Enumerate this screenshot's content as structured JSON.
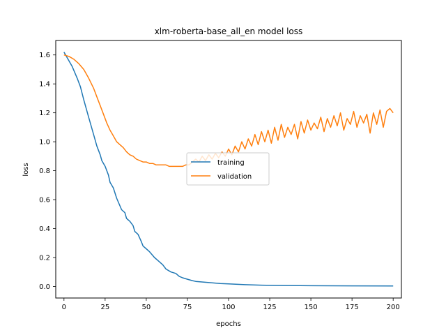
{
  "chart_data": {
    "type": "line",
    "title": "xlm-roberta-base_all_en model loss",
    "xlabel": "epochs",
    "ylabel": "loss",
    "xlim": [
      -5,
      205
    ],
    "ylim": [
      -0.08,
      1.7
    ],
    "xticks": [
      0,
      25,
      50,
      75,
      100,
      125,
      150,
      175,
      200
    ],
    "xtick_labels": [
      "0",
      "25",
      "50",
      "75",
      "100",
      "125",
      "150",
      "175",
      "200"
    ],
    "yticks": [
      0.0,
      0.2,
      0.4,
      0.6,
      0.8,
      1.0,
      1.2,
      1.4,
      1.6
    ],
    "ytick_labels": [
      "0.0",
      "0.2",
      "0.4",
      "0.6",
      "0.8",
      "1.0",
      "1.2",
      "1.4",
      "1.6"
    ],
    "grid": false,
    "legend_position": "center",
    "series": [
      {
        "name": "training",
        "color": "#1f77b4",
        "x": [
          0,
          2,
          5,
          8,
          10,
          12,
          15,
          18,
          20,
          22,
          23,
          25,
          27,
          28,
          30,
          32,
          35,
          37,
          38,
          40,
          42,
          43,
          45,
          47,
          48,
          50,
          52,
          55,
          57,
          60,
          62,
          65,
          68,
          70,
          72,
          75,
          78,
          80,
          85,
          90,
          95,
          100,
          110,
          120,
          130,
          150,
          175,
          200
        ],
        "y": [
          1.62,
          1.58,
          1.52,
          1.44,
          1.38,
          1.29,
          1.17,
          1.05,
          0.97,
          0.91,
          0.87,
          0.83,
          0.77,
          0.72,
          0.68,
          0.61,
          0.53,
          0.51,
          0.47,
          0.45,
          0.42,
          0.38,
          0.36,
          0.31,
          0.28,
          0.26,
          0.24,
          0.2,
          0.18,
          0.15,
          0.12,
          0.1,
          0.09,
          0.07,
          0.06,
          0.05,
          0.04,
          0.035,
          0.03,
          0.025,
          0.02,
          0.018,
          0.012,
          0.009,
          0.007,
          0.005,
          0.004,
          0.003
        ]
      },
      {
        "name": "validation",
        "color": "#ff7f0e",
        "x": [
          0,
          3,
          6,
          9,
          12,
          15,
          18,
          20,
          22,
          24,
          26,
          28,
          30,
          32,
          34,
          36,
          38,
          40,
          42,
          44,
          46,
          48,
          50,
          52,
          54,
          56,
          58,
          60,
          62,
          64,
          66,
          68,
          70,
          72,
          74,
          76,
          78,
          80,
          82,
          84,
          86,
          88,
          90,
          92,
          94,
          96,
          98,
          100,
          102,
          104,
          106,
          108,
          110,
          112,
          114,
          116,
          118,
          120,
          122,
          124,
          126,
          128,
          130,
          132,
          134,
          136,
          138,
          140,
          142,
          144,
          146,
          148,
          150,
          152,
          154,
          156,
          158,
          160,
          162,
          164,
          166,
          168,
          170,
          172,
          174,
          176,
          178,
          180,
          182,
          184,
          186,
          188,
          190,
          192,
          194,
          196,
          198,
          200
        ],
        "y": [
          1.6,
          1.59,
          1.57,
          1.54,
          1.5,
          1.44,
          1.37,
          1.31,
          1.25,
          1.19,
          1.13,
          1.08,
          1.04,
          1.0,
          0.98,
          0.96,
          0.93,
          0.91,
          0.9,
          0.88,
          0.87,
          0.86,
          0.86,
          0.85,
          0.85,
          0.84,
          0.84,
          0.84,
          0.84,
          0.83,
          0.83,
          0.83,
          0.83,
          0.83,
          0.84,
          0.84,
          0.86,
          0.88,
          0.86,
          0.9,
          0.87,
          0.91,
          0.88,
          0.92,
          0.89,
          0.93,
          0.9,
          0.95,
          0.91,
          0.97,
          0.93,
          1.0,
          0.95,
          1.02,
          0.97,
          1.05,
          0.98,
          1.07,
          1.0,
          1.08,
          0.99,
          1.1,
          1.01,
          1.12,
          1.03,
          1.1,
          1.05,
          1.12,
          1.02,
          1.14,
          1.06,
          1.15,
          1.08,
          1.13,
          1.09,
          1.17,
          1.07,
          1.16,
          1.1,
          1.18,
          1.11,
          1.2,
          1.08,
          1.16,
          1.12,
          1.21,
          1.1,
          1.18,
          1.13,
          1.19,
          1.06,
          1.2,
          1.12,
          1.22,
          1.1,
          1.21,
          1.23,
          1.2
        ]
      }
    ]
  }
}
